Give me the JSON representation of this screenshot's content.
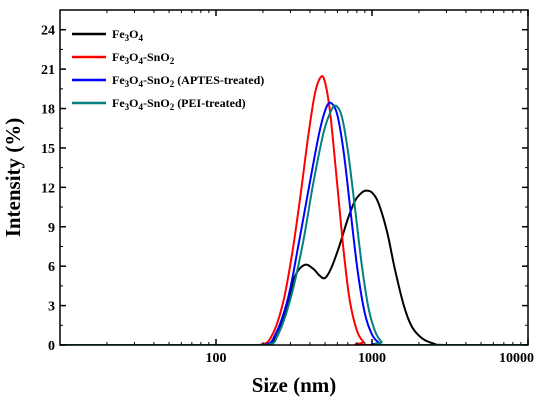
{
  "chart_data": {
    "type": "line",
    "title": "",
    "xlabel": "Size (nm)",
    "ylabel": "Intensity (%)",
    "x_scale": "log",
    "xlim": [
      10,
      10000
    ],
    "ylim": [
      0,
      25.5
    ],
    "x_ticks": [
      {
        "value": 100,
        "label": "100"
      },
      {
        "value": 1000,
        "label": "1000"
      },
      {
        "value": 10000,
        "label": "10000"
      }
    ],
    "y_ticks": [
      {
        "value": 0,
        "label": "0"
      },
      {
        "value": 3,
        "label": "3"
      },
      {
        "value": 6,
        "label": "6"
      },
      {
        "value": 9,
        "label": "9"
      },
      {
        "value": 12,
        "label": "12"
      },
      {
        "value": 15,
        "label": "15"
      },
      {
        "value": 18,
        "label": "18"
      },
      {
        "value": 21,
        "label": "21"
      },
      {
        "value": 24,
        "label": "24"
      }
    ],
    "grid": false,
    "legend_position": "top-left",
    "series": [
      {
        "name": "Fe3O4",
        "legend": {
          "base": "Fe",
          "parts": [
            [
              "sub",
              "3"
            ],
            [
              "base",
              "O"
            ],
            [
              "sub",
              "4"
            ]
          ]
        },
        "color": "#000000",
        "points": [
          [
            10,
            0
          ],
          [
            100,
            0
          ],
          [
            190,
            0
          ],
          [
            240,
            0.5
          ],
          [
            280,
            2.6
          ],
          [
            320,
            5.2
          ],
          [
            370,
            6.1
          ],
          [
            420,
            5.8
          ],
          [
            460,
            5.3
          ],
          [
            500,
            5.1
          ],
          [
            550,
            5.9
          ],
          [
            620,
            7.6
          ],
          [
            700,
            9.6
          ],
          [
            780,
            11.0
          ],
          [
            860,
            11.6
          ],
          [
            920,
            11.75
          ],
          [
            1000,
            11.6
          ],
          [
            1100,
            10.8
          ],
          [
            1250,
            8.6
          ],
          [
            1400,
            5.8
          ],
          [
            1600,
            3.0
          ],
          [
            1800,
            1.4
          ],
          [
            2100,
            0.5
          ],
          [
            2500,
            0.1
          ],
          [
            3000,
            0
          ],
          [
            10000,
            0
          ]
        ]
      },
      {
        "name": "Fe3O4-SnO2",
        "legend": {
          "base": "Fe",
          "parts": [
            [
              "sub",
              "3"
            ],
            [
              "base",
              "O"
            ],
            [
              "sub",
              "4"
            ],
            [
              "base",
              "-SnO"
            ],
            [
              "sub",
              "2"
            ]
          ]
        },
        "color": "#ff0000",
        "points": [
          [
            10,
            0
          ],
          [
            100,
            0
          ],
          [
            190,
            0
          ],
          [
            230,
            0.8
          ],
          [
            270,
            3.3
          ],
          [
            310,
            7.2
          ],
          [
            350,
            11.6
          ],
          [
            390,
            15.9
          ],
          [
            430,
            19.1
          ],
          [
            470,
            20.4
          ],
          [
            500,
            20.0
          ],
          [
            540,
            17.6
          ],
          [
            600,
            12.1
          ],
          [
            660,
            7.0
          ],
          [
            720,
            3.4
          ],
          [
            800,
            1.1
          ],
          [
            880,
            0.25
          ],
          [
            950,
            0
          ],
          [
            10000,
            0
          ]
        ]
      },
      {
        "name": "Fe3O4-SnO2 (APTES-treated)",
        "legend": {
          "base": "Fe",
          "parts": [
            [
              "sub",
              "3"
            ],
            [
              "base",
              "O"
            ],
            [
              "sub",
              "4"
            ],
            [
              "base",
              "-SnO"
            ],
            [
              "sub",
              "2"
            ],
            [
              "base",
              " (APTES-treated)"
            ]
          ]
        },
        "color": "#0000ff",
        "points": [
          [
            10,
            0
          ],
          [
            100,
            0
          ],
          [
            200,
            0
          ],
          [
            240,
            0.8
          ],
          [
            290,
            3.6
          ],
          [
            340,
            7.8
          ],
          [
            400,
            12.4
          ],
          [
            460,
            16.2
          ],
          [
            510,
            18.1
          ],
          [
            550,
            18.4
          ],
          [
            600,
            17.5
          ],
          [
            660,
            14.6
          ],
          [
            730,
            10.1
          ],
          [
            810,
            5.6
          ],
          [
            900,
            2.4
          ],
          [
            1000,
            0.8
          ],
          [
            1100,
            0.2
          ],
          [
            1200,
            0
          ],
          [
            10000,
            0
          ]
        ]
      },
      {
        "name": "Fe3O4-SnO2 (PEI-treated)",
        "legend": {
          "base": "Fe",
          "parts": [
            [
              "sub",
              "3"
            ],
            [
              "base",
              "O"
            ],
            [
              "sub",
              "4"
            ],
            [
              "base",
              "-SnO"
            ],
            [
              "sub",
              "2"
            ],
            [
              "base",
              " (PEI-treated)"
            ]
          ]
        },
        "color": "#008080",
        "points": [
          [
            10,
            0
          ],
          [
            100,
            0
          ],
          [
            210,
            0
          ],
          [
            250,
            0.8
          ],
          [
            300,
            3.5
          ],
          [
            360,
            7.7
          ],
          [
            420,
            12.3
          ],
          [
            490,
            16.2
          ],
          [
            550,
            17.9
          ],
          [
            590,
            18.2
          ],
          [
            640,
            17.4
          ],
          [
            700,
            14.8
          ],
          [
            780,
            10.3
          ],
          [
            860,
            6.1
          ],
          [
            950,
            2.8
          ],
          [
            1050,
            1.0
          ],
          [
            1150,
            0.25
          ],
          [
            1250,
            0
          ],
          [
            10000,
            0
          ]
        ]
      }
    ]
  }
}
